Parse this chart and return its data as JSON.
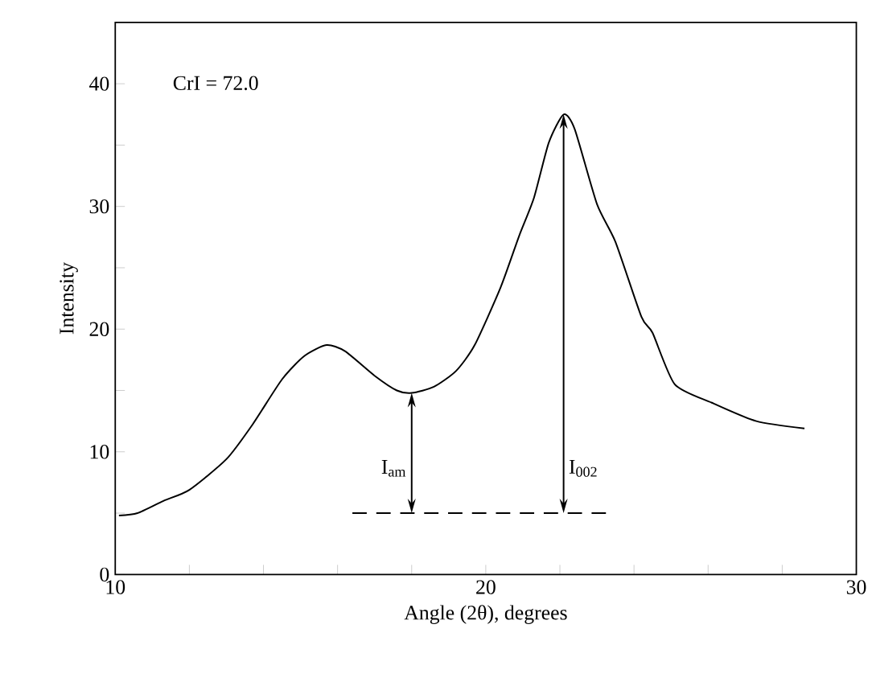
{
  "chart_data": {
    "type": "line",
    "xlabel": "Angle (2θ), degrees",
    "ylabel": "Intensity",
    "xlim": [
      10,
      30
    ],
    "ylim": [
      0,
      45
    ],
    "xticks": [
      10,
      {
        "value": 12,
        "label": null
      },
      {
        "value": 14,
        "label": null
      },
      {
        "value": 16,
        "label": null
      },
      {
        "value": 18,
        "label": null
      },
      20,
      {
        "value": 22,
        "label": null
      },
      {
        "value": 24,
        "label": null
      },
      {
        "value": 26,
        "label": null
      },
      {
        "value": 28,
        "label": null
      },
      30
    ],
    "yticks": [
      0,
      {
        "value": 5,
        "label": null
      },
      10,
      {
        "value": 15,
        "label": null
      },
      20,
      {
        "value": 25,
        "label": null
      },
      30,
      {
        "value": 35,
        "label": null
      },
      40
    ],
    "grid": false,
    "marker": "none",
    "series": [
      {
        "color": "#000000",
        "line_style": "solid",
        "x": [
          10.1,
          10.6,
          11.3,
          12.0,
          13.0,
          13.7,
          14.5,
          15.1,
          15.7,
          16.2,
          17.0,
          17.6,
          18.0,
          18.6,
          19.2,
          19.7,
          20.4,
          20.9,
          21.3,
          21.7,
          22.1,
          22.4,
          23.0,
          23.5,
          24.2,
          24.5,
          25.1,
          26.1,
          27.3,
          28.6
        ],
        "values": [
          4.8,
          5.0,
          6.0,
          6.9,
          9.4,
          12.2,
          15.9,
          17.8,
          18.7,
          18.2,
          16.2,
          15.0,
          14.8,
          15.3,
          16.6,
          18.7,
          23.4,
          27.6,
          30.7,
          35.2,
          37.5,
          36.3,
          30.2,
          27.1,
          21.0,
          19.7,
          15.5,
          14.0,
          12.5,
          11.9
        ]
      },
      {
        "color": "#000000",
        "line_style": "dashed",
        "x": [
          16.4,
          23.3
        ],
        "values": [
          5,
          5
        ]
      }
    ],
    "annotations": [
      "CrI = 72.0",
      {
        "text": "I$_{am}$",
        "x": 18.0,
        "y": 5
      },
      {
        "text": "I$_{002}$",
        "x": 22.1,
        "y": 5
      }
    ]
  }
}
